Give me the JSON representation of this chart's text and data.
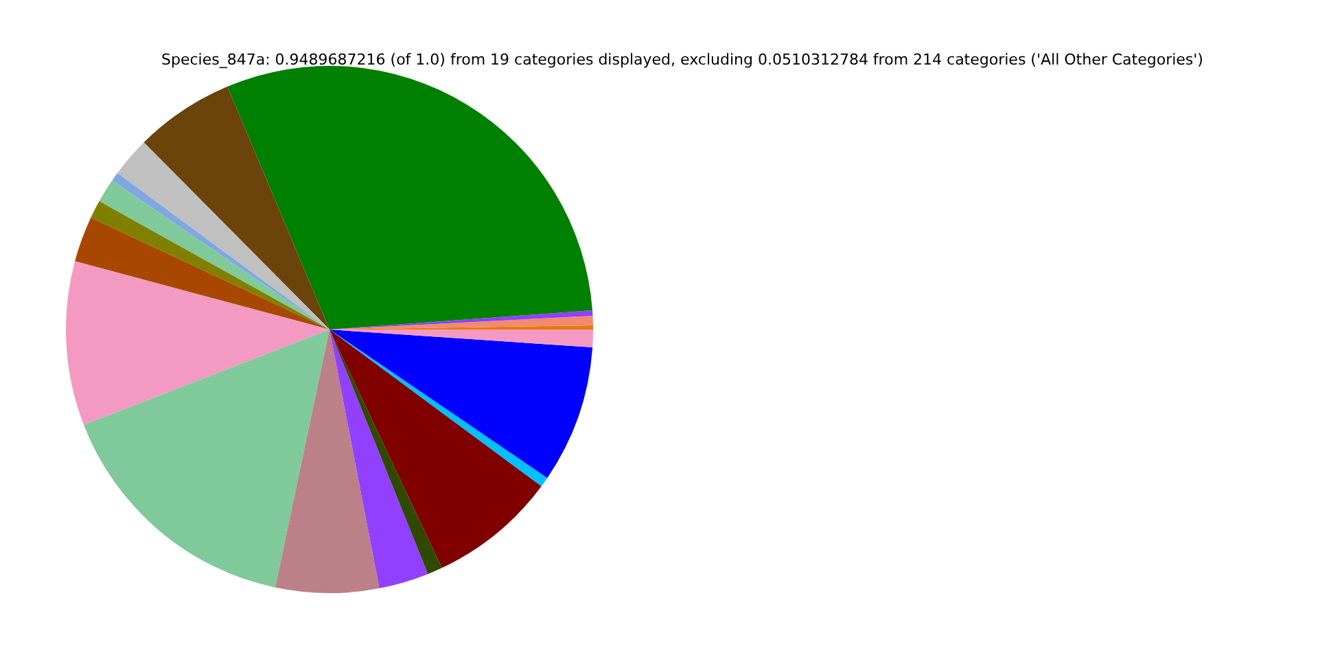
{
  "chart_data": {
    "type": "pie",
    "title": "Species_847a: 0.9489687216 (of 1.0) from 19 categories displayed, excluding 0.0510312784 from 214 categories ('All Other Categories')",
    "categories": [
      null,
      null,
      null,
      null,
      null,
      null,
      null,
      null,
      null,
      null,
      null,
      null,
      null,
      null,
      null,
      null,
      null,
      null,
      null
    ],
    "values": [
      0.25,
      0.58,
      0.33,
      30.17,
      6.11,
      2.44,
      0.56,
      1.47,
      1.11,
      2.81,
      10.06,
      15.81,
      6.33,
      3.06,
      0.92,
      7.86,
      0.61,
      8.44,
      1.08
    ],
    "colors": [
      "#e8790b",
      "#f28a6e",
      "#9040ff",
      "#008000",
      "#6b440b",
      "#c0c0c0",
      "#80a8e0",
      "#80c99b",
      "#808000",
      "#a84800",
      "#f49ac2",
      "#80c99b",
      "#bc8088",
      "#9140ff",
      "#2f4a00",
      "#800000",
      "#00bfff",
      "#0000ff",
      "#f49ac2"
    ]
  }
}
